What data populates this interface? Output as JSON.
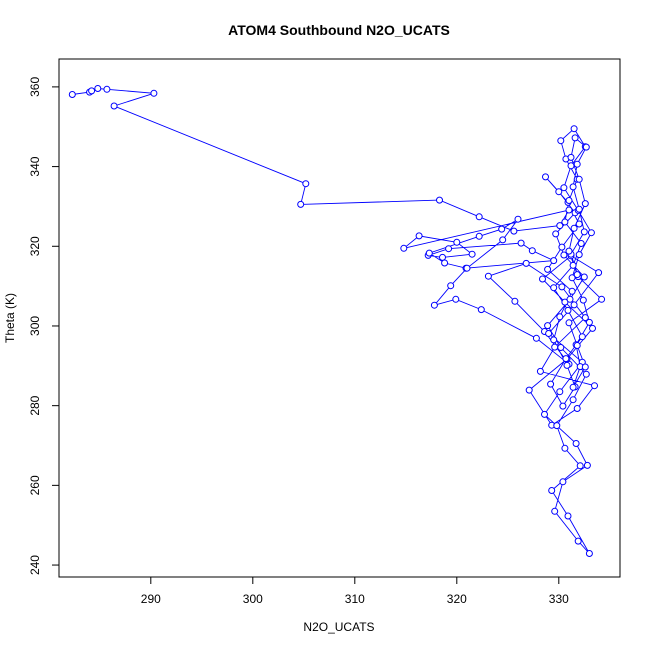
{
  "chart_data": {
    "type": "line",
    "title": "ATOM4 Southbound N2O_UCATS",
    "xlabel": "N2O_UCATS",
    "ylabel": "Theta (K)",
    "xlim": [
      281,
      336
    ],
    "ylim": [
      237,
      367
    ],
    "xticks": [
      290,
      300,
      310,
      320,
      330
    ],
    "yticks": [
      240,
      260,
      280,
      300,
      320,
      340,
      360
    ],
    "grid": false,
    "color": "#0000ff",
    "marker": "open-circle",
    "series": [
      {
        "name": "",
        "x": [
          282.3,
          284.0,
          284.2,
          284.8,
          285.7,
          290.3,
          286.4,
          305.2,
          304.7,
          318.3,
          322.2,
          325.6,
          330.1,
          331.0,
          314.8,
          316.3,
          320.0,
          321.5,
          318.6,
          317.2,
          319.2,
          326.3,
          327.4,
          329.5,
          320.9,
          318.8,
          317.3,
          322.2,
          324.4,
          326.0,
          324.5,
          321.0,
          319.4,
          317.8,
          319.9,
          322.4,
          327.8,
          331.0,
          328.6,
          325.7,
          323.1,
          326.8,
          330.3,
          332.6,
          329.6,
          328.2,
          333.5,
          331.8,
          329.3,
          327.1,
          330.8,
          333.3,
          330.6,
          328.4,
          331.2,
          333.9,
          331.5,
          329.0,
          332.3,
          330.1,
          328.6,
          331.7,
          332.8,
          330.4,
          329.6,
          331.9,
          333.0,
          330.9,
          329.3,
          332.1,
          330.6,
          329.8,
          331.4,
          332.7,
          330.2,
          328.9,
          331.1,
          332.5,
          330.5,
          329.7,
          331.6,
          330.0,
          328.7,
          330.9,
          332.0,
          330.3,
          328.9,
          331.3,
          330.1,
          329.5,
          330.8,
          331.6,
          330.4,
          329.2,
          330.7,
          332.3,
          330.9,
          329.5,
          331.4,
          332.2,
          330.6,
          331.0,
          331.8,
          330.7,
          330.2,
          331.5,
          332.6,
          331.2,
          330.5,
          331.9,
          333.2,
          332.0,
          331.3,
          332.4,
          333.0,
          331.7,
          332.1,
          331.4,
          332.6,
          331.8,
          331.0,
          334.2,
          331.9,
          331.2,
          332.5,
          332.0,
          331.4,
          331.8,
          332.7,
          331.6,
          331.2,
          332.0,
          332.6,
          331.5,
          331.0,
          331.8
        ],
        "y": [
          358.1,
          358.7,
          359.0,
          359.6,
          359.4,
          358.4,
          355.2,
          335.7,
          330.5,
          331.6,
          327.4,
          323.8,
          325.2,
          329.1,
          319.5,
          322.6,
          321.0,
          318.0,
          317.2,
          317.7,
          319.4,
          320.8,
          318.9,
          316.4,
          314.5,
          315.8,
          318.3,
          322.5,
          324.3,
          326.8,
          321.6,
          314.5,
          310.1,
          305.2,
          306.7,
          304.1,
          296.9,
          290.4,
          298.6,
          306.2,
          312.5,
          315.7,
          309.8,
          302.1,
          294.7,
          288.6,
          285.0,
          279.3,
          275.1,
          283.9,
          291.7,
          299.4,
          306.0,
          311.8,
          317.6,
          313.4,
          305.3,
          298.1,
          290.9,
          283.5,
          277.8,
          270.5,
          265.0,
          260.9,
          253.5,
          246.0,
          242.9,
          252.3,
          258.7,
          264.9,
          269.3,
          275.0,
          281.5,
          287.9,
          294.6,
          300.1,
          306.7,
          312.3,
          317.8,
          323.1,
          328.4,
          333.7,
          337.4,
          331.0,
          325.6,
          319.8,
          314.2,
          308.7,
          302.3,
          296.5,
          290.1,
          284.7,
          279.9,
          285.4,
          291.8,
          297.3,
          303.9,
          309.6,
          315.2,
          320.7,
          326.1,
          331.5,
          336.8,
          341.9,
          346.5,
          349.5,
          345.0,
          340.2,
          334.7,
          329.0,
          323.4,
          317.9,
          312.1,
          306.5,
          300.9,
          295.3,
          289.8,
          284.6,
          289.7,
          295.1,
          300.8,
          306.7,
          312.4,
          318.0,
          323.6,
          329.3,
          334.9,
          340.6,
          344.9,
          347.2,
          342.3,
          336.8,
          330.7,
          324.5,
          318.8,
          312.9
        ]
      }
    ]
  }
}
